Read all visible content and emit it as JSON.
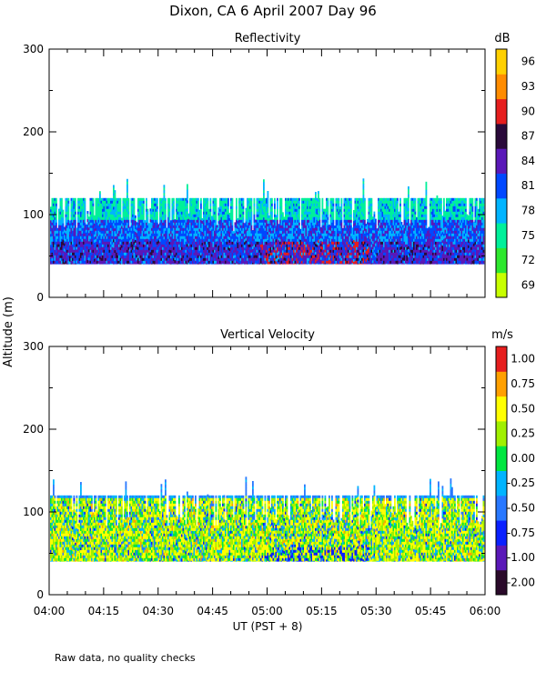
{
  "figure": {
    "title": "Dixon, CA   6 April 2007   Day  96",
    "ylabel": "Altitude (m)",
    "xlabel": "UT  (PST + 8)",
    "note": "Raw data, no quality checks"
  },
  "chart_data": [
    {
      "type": "heatmap",
      "title": "Reflectivity",
      "colorbar_unit": "dB",
      "colorbar_ticks": [
        "69",
        "72",
        "75",
        "78",
        "81",
        "84",
        "87",
        "90",
        "93",
        "96"
      ],
      "colorbar_colors": [
        "#c8ff00",
        "#2ee82e",
        "#00f09a",
        "#00b4ff",
        "#0048ff",
        "#5a18b8",
        "#2a0a3a",
        "#e61e1e",
        "#ff8c00",
        "#ffd000"
      ],
      "x": [
        "04:00",
        "04:15",
        "04:30",
        "04:45",
        "05:00",
        "05:15",
        "05:30",
        "05:45",
        "06:00"
      ],
      "xlim": [
        "04:00",
        "06:00"
      ],
      "y_ticks": [
        "0",
        "100",
        "200",
        "300"
      ],
      "ylim": [
        0,
        300
      ],
      "data_altitude_range": [
        40,
        120
      ],
      "sporadic_echo_top": 160
    },
    {
      "type": "heatmap",
      "title": "Vertical Velocity",
      "colorbar_unit": "m/s",
      "colorbar_ticks": [
        "-2.00",
        "-1.00",
        "-0.75",
        "-0.50",
        "-0.25",
        "0.00",
        "0.25",
        "0.50",
        "0.75",
        "1.00"
      ],
      "colorbar_colors": [
        "#2a0a2a",
        "#5a18b8",
        "#0a20ff",
        "#2878ff",
        "#00b4ff",
        "#00e640",
        "#a0f000",
        "#ffff00",
        "#ffa000",
        "#e61e1e"
      ],
      "x": [
        "04:00",
        "04:15",
        "04:30",
        "04:45",
        "05:00",
        "05:15",
        "05:30",
        "05:45",
        "06:00"
      ],
      "xlim": [
        "04:00",
        "06:00"
      ],
      "y_ticks": [
        "0",
        "100",
        "200",
        "300"
      ],
      "ylim": [
        0,
        300
      ],
      "data_altitude_range": [
        40,
        120
      ],
      "sporadic_echo_top": 160
    }
  ]
}
